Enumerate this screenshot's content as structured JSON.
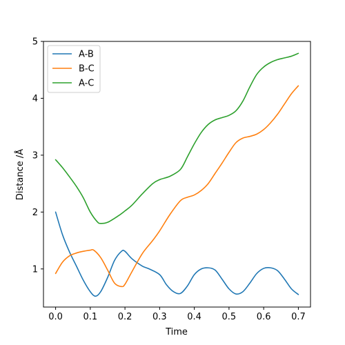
{
  "chart_data": {
    "type": "line",
    "title": "",
    "xlabel": "Time",
    "ylabel": "Distance /Å",
    "xlim": [
      -0.035,
      0.735
    ],
    "ylim": [
      0.33,
      5.0
    ],
    "xticks": [
      0.0,
      0.1,
      0.2,
      0.3,
      0.4,
      0.5,
      0.6,
      0.7
    ],
    "xtick_labels": [
      "0.0",
      "0.1",
      "0.2",
      "0.3",
      "0.4",
      "0.5",
      "0.6",
      "0.7"
    ],
    "yticks": [
      1,
      2,
      3,
      4,
      5
    ],
    "ytick_labels": [
      "1",
      "2",
      "3",
      "4",
      "5"
    ],
    "grid": false,
    "legend_position": "top-left",
    "series": [
      {
        "name": "A-B",
        "color": "#1f77b4",
        "x": [
          0.0,
          0.02,
          0.04,
          0.06,
          0.08,
          0.1,
          0.115,
          0.13,
          0.15,
          0.17,
          0.19,
          0.2,
          0.22,
          0.25,
          0.27,
          0.3,
          0.32,
          0.34,
          0.36,
          0.38,
          0.4,
          0.42,
          0.44,
          0.46,
          0.48,
          0.5,
          0.52,
          0.54,
          0.56,
          0.58,
          0.6,
          0.62,
          0.64,
          0.66,
          0.68,
          0.7
        ],
        "y": [
          2.0,
          1.6,
          1.3,
          1.05,
          0.8,
          0.6,
          0.52,
          0.6,
          0.85,
          1.15,
          1.31,
          1.31,
          1.18,
          1.05,
          1.0,
          0.9,
          0.72,
          0.6,
          0.57,
          0.7,
          0.9,
          1.0,
          1.02,
          0.98,
          0.82,
          0.65,
          0.56,
          0.6,
          0.75,
          0.92,
          1.01,
          1.02,
          0.97,
          0.82,
          0.65,
          0.55
        ]
      },
      {
        "name": "B-C",
        "color": "#ff7f0e",
        "x": [
          0.0,
          0.02,
          0.04,
          0.06,
          0.08,
          0.1,
          0.11,
          0.13,
          0.15,
          0.17,
          0.19,
          0.2,
          0.22,
          0.25,
          0.28,
          0.3,
          0.33,
          0.36,
          0.38,
          0.4,
          0.42,
          0.44,
          0.46,
          0.48,
          0.5,
          0.52,
          0.54,
          0.56,
          0.58,
          0.6,
          0.62,
          0.64,
          0.66,
          0.68,
          0.7
        ],
        "y": [
          0.92,
          1.12,
          1.23,
          1.28,
          1.31,
          1.33,
          1.33,
          1.2,
          0.98,
          0.75,
          0.69,
          0.73,
          0.95,
          1.27,
          1.5,
          1.67,
          1.96,
          2.2,
          2.26,
          2.3,
          2.38,
          2.5,
          2.68,
          2.86,
          3.05,
          3.22,
          3.3,
          3.33,
          3.37,
          3.45,
          3.57,
          3.72,
          3.9,
          4.08,
          4.22
        ]
      },
      {
        "name": "A-C",
        "color": "#2ca02c",
        "x": [
          0.0,
          0.02,
          0.04,
          0.06,
          0.08,
          0.1,
          0.12,
          0.13,
          0.15,
          0.18,
          0.2,
          0.22,
          0.25,
          0.28,
          0.3,
          0.33,
          0.36,
          0.38,
          0.4,
          0.42,
          0.44,
          0.46,
          0.48,
          0.5,
          0.52,
          0.54,
          0.56,
          0.58,
          0.6,
          0.62,
          0.64,
          0.66,
          0.68,
          0.7
        ],
        "y": [
          2.92,
          2.78,
          2.62,
          2.45,
          2.25,
          2.0,
          1.83,
          1.8,
          1.82,
          1.93,
          2.02,
          2.12,
          2.32,
          2.5,
          2.57,
          2.63,
          2.75,
          2.97,
          3.2,
          3.4,
          3.54,
          3.62,
          3.66,
          3.7,
          3.78,
          3.95,
          4.2,
          4.42,
          4.55,
          4.63,
          4.68,
          4.71,
          4.74,
          4.79
        ]
      }
    ]
  }
}
